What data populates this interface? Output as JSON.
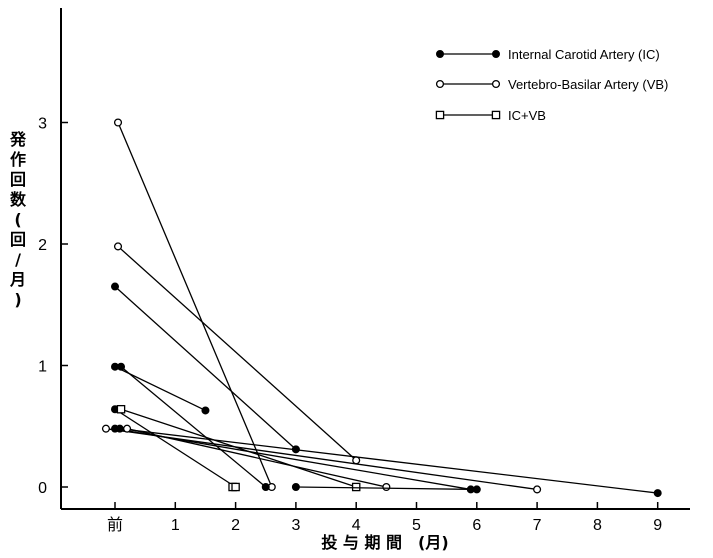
{
  "chart_data": {
    "type": "line",
    "title": "",
    "xlabel": "投 与 期 間　(月)",
    "ylabel": "発 作 回 数　(回/月)",
    "x_tick_labels": [
      "前",
      "1",
      "2",
      "3",
      "4",
      "5",
      "6",
      "7",
      "8",
      "9"
    ],
    "x_tick_values": [
      0,
      1,
      2,
      3,
      4,
      5,
      6,
      7,
      8,
      9
    ],
    "y_tick_labels": [
      "0",
      "1",
      "2",
      "3"
    ],
    "y_tick_values": [
      0,
      1,
      2,
      3
    ],
    "xlim": [
      -0.9,
      9.5
    ],
    "ylim": [
      -0.08,
      3.95
    ],
    "legend": {
      "position": "top-right",
      "entries": [
        {
          "label": "Internal Carotid Artery (IC)",
          "marker": "filled-circle"
        },
        {
          "label": "Vertebro-Basilar Artery (VB)",
          "marker": "open-circle"
        },
        {
          "label": "IC+VB",
          "marker": "open-square"
        }
      ]
    },
    "series": [
      {
        "group": "VB",
        "marker": "open-circle",
        "points": [
          [
            0.05,
            3.0
          ],
          [
            2.6,
            0.0
          ]
        ]
      },
      {
        "group": "VB",
        "marker": "open-circle",
        "points": [
          [
            0.05,
            1.98
          ],
          [
            4.0,
            0.22
          ]
        ]
      },
      {
        "group": "IC",
        "marker": "filled-circle",
        "points": [
          [
            0.0,
            1.65
          ],
          [
            3.0,
            0.31
          ]
        ]
      },
      {
        "group": "IC",
        "marker": "filled-circle",
        "points": [
          [
            0.0,
            0.99
          ],
          [
            1.5,
            0.63
          ]
        ]
      },
      {
        "group": "IC",
        "marker": "filled-circle",
        "points": [
          [
            0.1,
            0.99
          ],
          [
            2.5,
            0.0
          ]
        ]
      },
      {
        "group": "IC",
        "marker": "filled-circle",
        "points": [
          [
            0.0,
            0.64
          ],
          [
            2.0,
            0.0
          ]
        ]
      },
      {
        "group": "IC+VB",
        "marker": "open-square",
        "points": [
          [
            0.1,
            0.64
          ],
          [
            4.0,
            0.0
          ]
        ]
      },
      {
        "group": "VB",
        "marker": "open-circle",
        "points": [
          [
            -0.15,
            0.48
          ],
          [
            7.0,
            -0.02
          ]
        ]
      },
      {
        "group": "IC",
        "marker": "filled-circle",
        "points": [
          [
            0.0,
            0.48
          ],
          [
            5.9,
            -0.02
          ]
        ]
      },
      {
        "group": "IC",
        "marker": "filled-circle",
        "points": [
          [
            0.08,
            0.48
          ],
          [
            9.0,
            -0.05
          ]
        ]
      },
      {
        "group": "VB",
        "marker": "open-circle",
        "points": [
          [
            0.2,
            0.48
          ],
          [
            4.5,
            0.0
          ]
        ]
      },
      {
        "group": "IC",
        "marker": "filled-circle",
        "points": [
          [
            3.0,
            0.0
          ],
          [
            6.0,
            -0.02
          ]
        ]
      },
      {
        "group": "IC+VB",
        "marker": "open-square",
        "points": [
          [
            1.95,
            0.0
          ],
          [
            2.0,
            0.0
          ]
        ]
      }
    ]
  }
}
